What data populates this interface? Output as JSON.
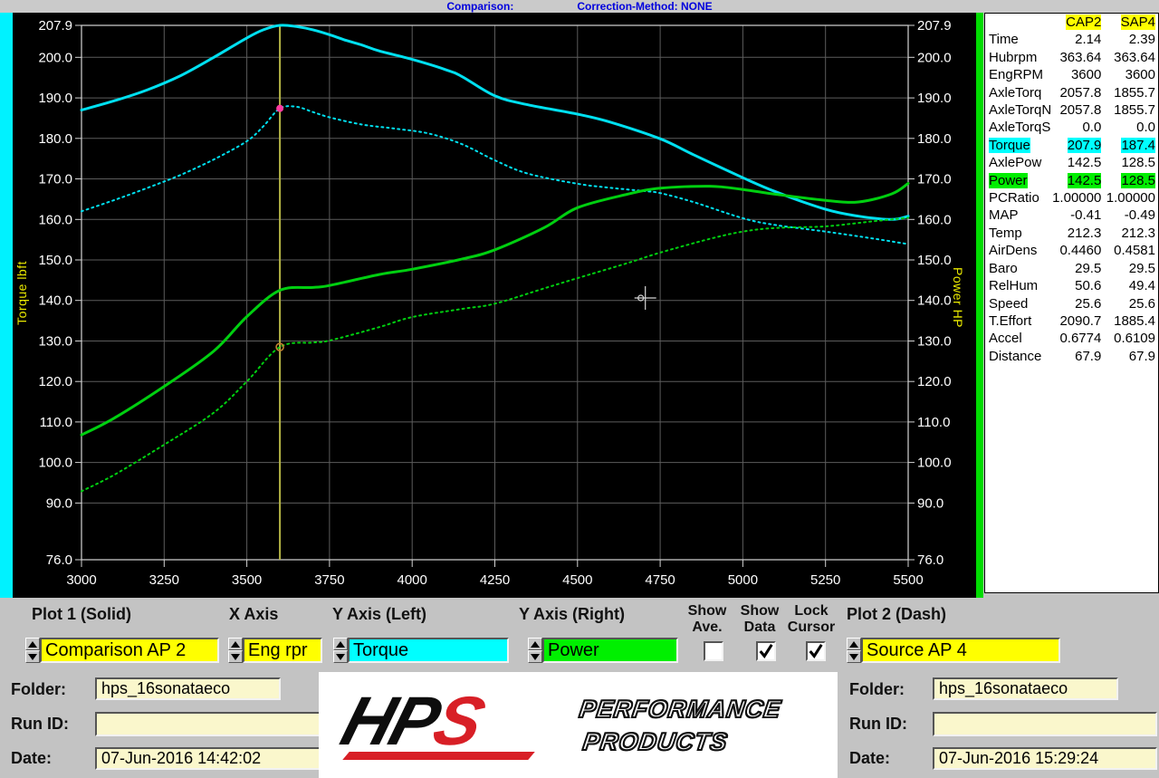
{
  "header": {
    "comparison_label": "Comparison:",
    "correction_label": "Correction-Method: NONE"
  },
  "colors": {
    "accent_yellow": "#ffff00",
    "accent_cyan": "#00ffff",
    "accent_green": "#00ee00",
    "torque_curve": "#00e0f0",
    "power_curve": "#00cf10",
    "cursor_line": "#b5b545",
    "panel_bg": "#ffffff",
    "chart_bg": "#000000",
    "cream_field": "#faf7cc",
    "logo_red": "#d81f26"
  },
  "chart_data": {
    "type": "line",
    "title": "",
    "xlabel": "Eng rpm",
    "ylabel_left": "Torque lbft",
    "ylabel_right": "Power HP",
    "x_range": [
      3000,
      5500
    ],
    "y_range": [
      76.0,
      207.9
    ],
    "x_ticks": [
      3000,
      3250,
      3500,
      3750,
      4000,
      4250,
      4500,
      4750,
      5000,
      5250,
      5500
    ],
    "y_ticks": [
      207.9,
      200.0,
      190.0,
      180.0,
      170.0,
      160.0,
      150.0,
      140.0,
      130.0,
      120.0,
      110.0,
      100.0,
      90.0,
      76.0
    ],
    "grid": true,
    "cursor_rpm": 3600,
    "crosshair": {
      "rpm": 4705,
      "value": 140.6
    },
    "series": [
      {
        "name": "Torque CAP2 (solid)",
        "id": "torque-cap2-curve",
        "color": "#00e0f0",
        "style": "solid",
        "points": [
          [
            3000,
            187.0
          ],
          [
            3100,
            189.3
          ],
          [
            3200,
            192.0
          ],
          [
            3300,
            195.5
          ],
          [
            3400,
            200.0
          ],
          [
            3500,
            204.8
          ],
          [
            3550,
            206.8
          ],
          [
            3600,
            207.9
          ],
          [
            3650,
            207.6
          ],
          [
            3700,
            206.8
          ],
          [
            3750,
            205.6
          ],
          [
            3800,
            204.2
          ],
          [
            3850,
            203.0
          ],
          [
            3900,
            201.6
          ],
          [
            4000,
            199.5
          ],
          [
            4100,
            197.0
          ],
          [
            4150,
            195.3
          ],
          [
            4250,
            190.5
          ],
          [
            4350,
            188.3
          ],
          [
            4500,
            186.0
          ],
          [
            4600,
            184.0
          ],
          [
            4750,
            179.9
          ],
          [
            4850,
            176.0
          ],
          [
            5000,
            170.3
          ],
          [
            5100,
            166.8
          ],
          [
            5250,
            162.5
          ],
          [
            5350,
            160.8
          ],
          [
            5450,
            160.0
          ],
          [
            5500,
            160.8
          ]
        ]
      },
      {
        "name": "Torque SAP4 (dash)",
        "id": "torque-sap4-curve",
        "color": "#00e0f0",
        "style": "dot",
        "points": [
          [
            3000,
            162.0
          ],
          [
            3100,
            164.8
          ],
          [
            3200,
            167.8
          ],
          [
            3300,
            171.0
          ],
          [
            3400,
            174.8
          ],
          [
            3500,
            179.3
          ],
          [
            3550,
            183.0
          ],
          [
            3600,
            187.4
          ],
          [
            3650,
            187.8
          ],
          [
            3700,
            186.5
          ],
          [
            3750,
            185.2
          ],
          [
            3850,
            183.4
          ],
          [
            3950,
            182.4
          ],
          [
            4050,
            181.2
          ],
          [
            4150,
            178.6
          ],
          [
            4250,
            174.6
          ],
          [
            4350,
            171.3
          ],
          [
            4500,
            168.8
          ],
          [
            4600,
            167.8
          ],
          [
            4700,
            167.0
          ],
          [
            4750,
            166.5
          ],
          [
            4850,
            164.3
          ],
          [
            5000,
            160.3
          ],
          [
            5100,
            158.6
          ],
          [
            5250,
            157.0
          ],
          [
            5400,
            155.2
          ],
          [
            5500,
            153.9
          ]
        ]
      },
      {
        "name": "Power CAP2 (solid)",
        "id": "power-cap2-curve",
        "color": "#00cf10",
        "style": "solid",
        "points": [
          [
            3000,
            106.8
          ],
          [
            3100,
            111.0
          ],
          [
            3250,
            118.8
          ],
          [
            3400,
            127.5
          ],
          [
            3500,
            136.0
          ],
          [
            3600,
            142.5
          ],
          [
            3700,
            143.2
          ],
          [
            3750,
            143.7
          ],
          [
            3900,
            146.4
          ],
          [
            4000,
            147.7
          ],
          [
            4150,
            150.2
          ],
          [
            4250,
            152.5
          ],
          [
            4400,
            158.0
          ],
          [
            4500,
            162.9
          ],
          [
            4650,
            166.2
          ],
          [
            4750,
            167.7
          ],
          [
            4900,
            168.2
          ],
          [
            5000,
            167.4
          ],
          [
            5100,
            166.2
          ],
          [
            5250,
            164.7
          ],
          [
            5350,
            164.3
          ],
          [
            5450,
            166.3
          ],
          [
            5500,
            168.9
          ]
        ]
      },
      {
        "name": "Power SAP4 (dash)",
        "id": "power-sap4-curve",
        "color": "#00cf10",
        "style": "dot",
        "points": [
          [
            3000,
            92.9
          ],
          [
            3100,
            97.0
          ],
          [
            3250,
            104.4
          ],
          [
            3400,
            112.3
          ],
          [
            3500,
            120.0
          ],
          [
            3600,
            128.5
          ],
          [
            3700,
            129.6
          ],
          [
            3750,
            130.1
          ],
          [
            3900,
            133.4
          ],
          [
            4000,
            135.9
          ],
          [
            4150,
            137.9
          ],
          [
            4250,
            139.2
          ],
          [
            4400,
            143.0
          ],
          [
            4500,
            145.5
          ],
          [
            4650,
            149.2
          ],
          [
            4750,
            151.8
          ],
          [
            4900,
            155.2
          ],
          [
            5000,
            157.0
          ],
          [
            5100,
            157.9
          ],
          [
            5250,
            158.3
          ],
          [
            5400,
            159.6
          ],
          [
            5500,
            160.4
          ]
        ]
      }
    ],
    "markers": [
      {
        "series": "torque-sap4-curve",
        "rpm": 3600,
        "value": 187.4,
        "color": "#ff3aa0",
        "type": "dot"
      },
      {
        "series": "power-sap4-curve",
        "rpm": 3600,
        "value": 128.5,
        "color": "#c08030",
        "type": "ring"
      }
    ]
  },
  "panel": {
    "columns": [
      "CAP2",
      "SAP4"
    ],
    "rows": [
      {
        "label": "Time",
        "v1": "2.14",
        "v2": "2.39",
        "hl": ""
      },
      {
        "label": "Hubrpm",
        "v1": "363.64",
        "v2": "363.64",
        "hl": ""
      },
      {
        "label": "EngRPM",
        "v1": "3600",
        "v2": "3600",
        "hl": ""
      },
      {
        "label": "AxleTorq",
        "v1": "2057.8",
        "v2": "1855.7",
        "hl": ""
      },
      {
        "label": "AxleTorqN",
        "v1": "2057.8",
        "v2": "1855.7",
        "hl": ""
      },
      {
        "label": "AxleTorqS",
        "v1": "0.0",
        "v2": "0.0",
        "hl": ""
      },
      {
        "label": "Torque",
        "v1": "207.9",
        "v2": "187.4",
        "hl": "cyan"
      },
      {
        "label": "AxlePow",
        "v1": "142.5",
        "v2": "128.5",
        "hl": ""
      },
      {
        "label": "Power",
        "v1": "142.5",
        "v2": "128.5",
        "hl": "green"
      },
      {
        "label": "PCRatio",
        "v1": "1.00000",
        "v2": "1.00000",
        "hl": ""
      },
      {
        "label": "MAP",
        "v1": "-0.41",
        "v2": "-0.49",
        "hl": ""
      },
      {
        "label": "Temp",
        "v1": "212.3",
        "v2": "212.3",
        "hl": ""
      },
      {
        "label": "AirDens",
        "v1": "0.4460",
        "v2": "0.4581",
        "hl": ""
      },
      {
        "label": "Baro",
        "v1": "29.5",
        "v2": "29.5",
        "hl": ""
      },
      {
        "label": "RelHum",
        "v1": "50.6",
        "v2": "49.4",
        "hl": ""
      },
      {
        "label": "Speed",
        "v1": "25.6",
        "v2": "25.6",
        "hl": ""
      },
      {
        "label": "T.Effort",
        "v1": "2090.7",
        "v2": "1885.4",
        "hl": ""
      },
      {
        "label": "Accel",
        "v1": "0.6774",
        "v2": "0.6109",
        "hl": ""
      },
      {
        "label": "Distance",
        "v1": "67.9",
        "v2": "67.9",
        "hl": ""
      }
    ]
  },
  "controls": {
    "plot1": {
      "label": "Plot 1 (Solid)",
      "value": "Comparison AP 2"
    },
    "xaxis": {
      "label": "X Axis",
      "value": "Eng rpr"
    },
    "yleft": {
      "label": "Y Axis (Left)",
      "value": "Torque"
    },
    "yright": {
      "label": "Y Axis (Right)",
      "value": "Power"
    },
    "plot2": {
      "label": "Plot 2 (Dash)",
      "value": "Source AP 4"
    },
    "show_ave": {
      "line1": "Show",
      "line2": "Ave.",
      "checked": false
    },
    "show_data": {
      "line1": "Show",
      "line2": "Data",
      "checked": true
    },
    "lock_cursor": {
      "line1": "Lock",
      "line2": "Cursor",
      "checked": true
    }
  },
  "info_left": {
    "folder_label": "Folder:",
    "folder": "hps_16sonataeco",
    "runid_label": "Run ID:",
    "runid": "",
    "date_label": "Date:",
    "date": "07-Jun-2016  14:42:02"
  },
  "info_right": {
    "folder_label": "Folder:",
    "folder": "hps_16sonataeco",
    "runid_label": "Run ID:",
    "runid": "",
    "date_label": "Date:",
    "date": "07-Jun-2016  15:29:24"
  },
  "logo": {
    "hp": "HP",
    "s": "S",
    "line1": "PERFORMANCE",
    "line2": "PRODUCTS"
  }
}
